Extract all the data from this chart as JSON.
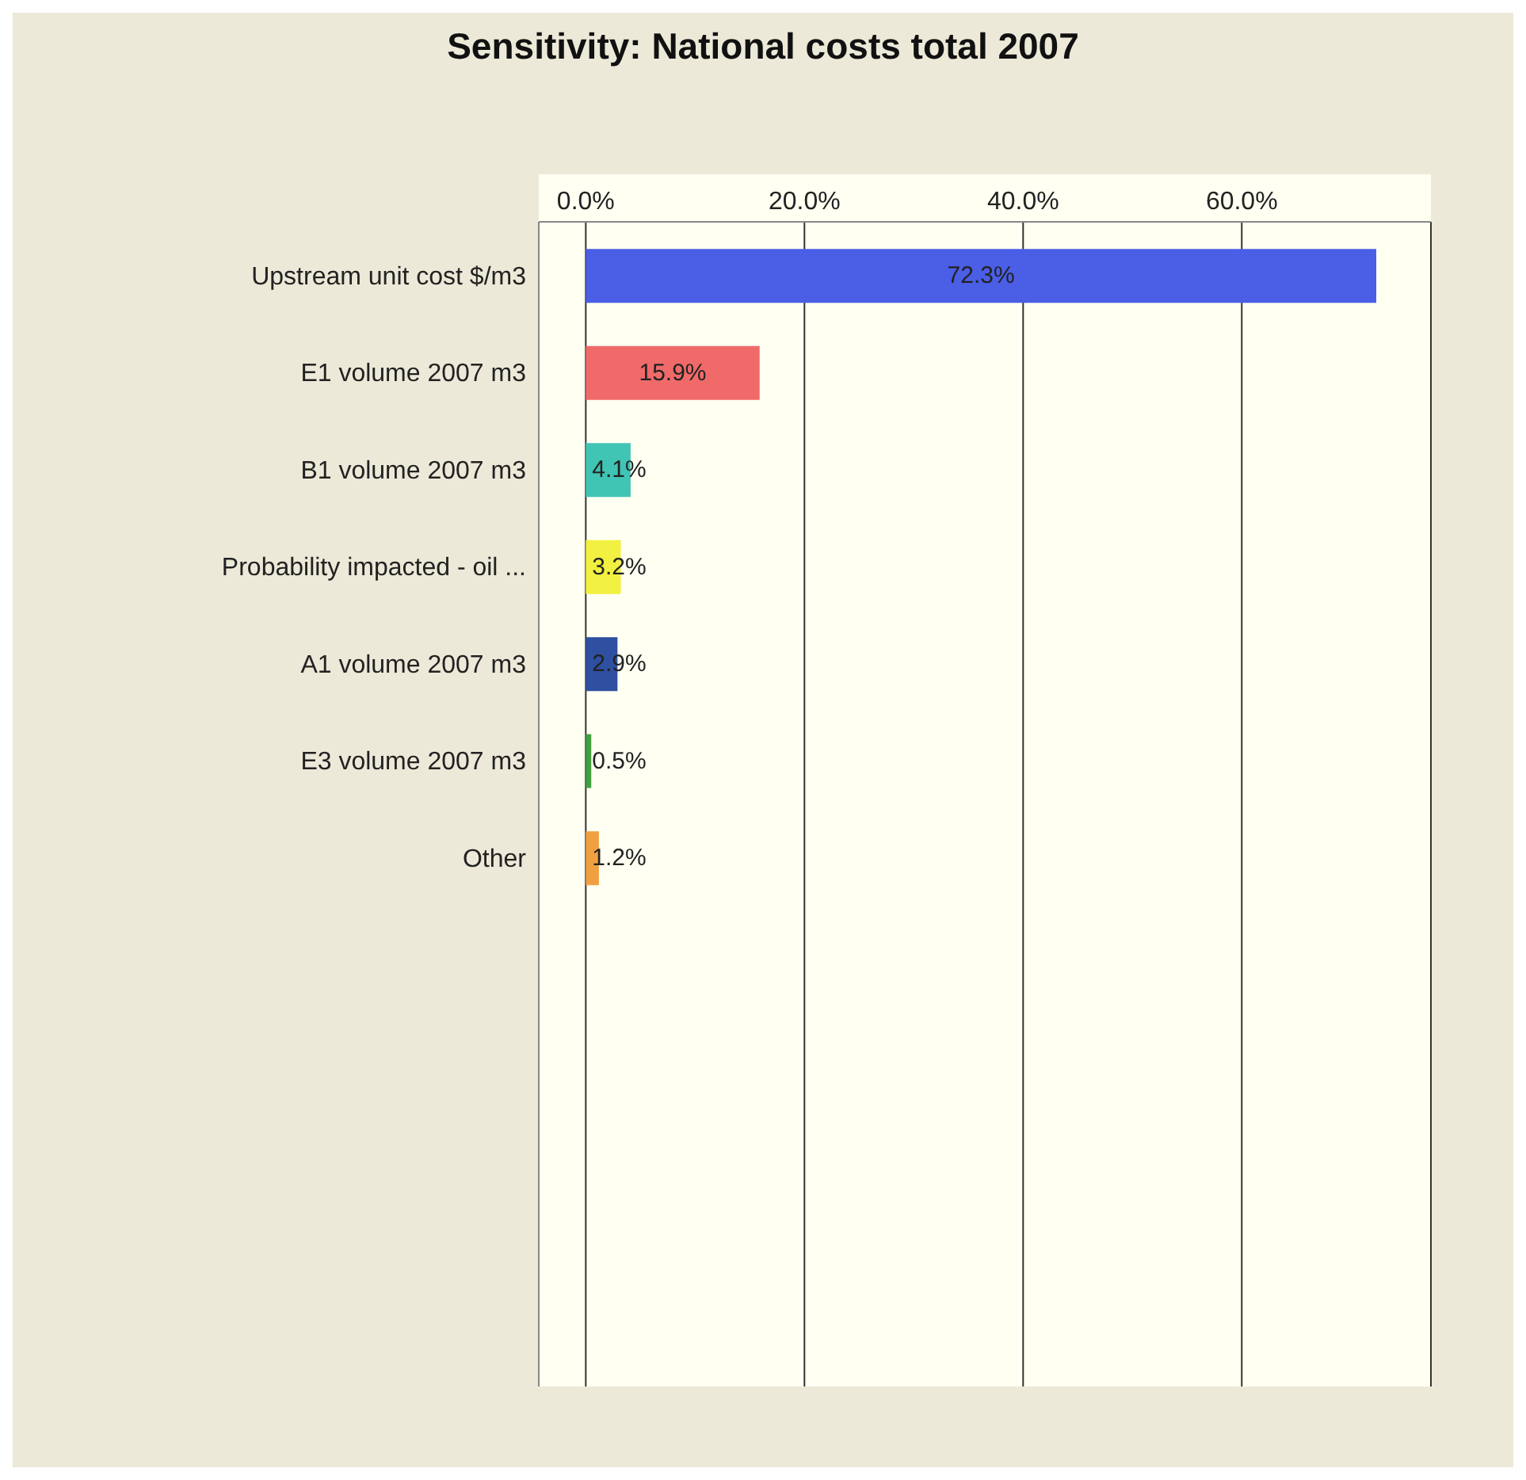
{
  "chart_data": {
    "type": "bar",
    "orientation": "horizontal",
    "title": "Sensitivity: National costs total 2007",
    "categories": [
      "Upstream unit cost $/m3",
      "E1 volume 2007 m3",
      "B1 volume 2007 m3",
      "Probability impacted - oil ...",
      "A1 volume 2007 m3",
      "E3 volume 2007 m3",
      "Other"
    ],
    "values": [
      72.3,
      15.9,
      4.1,
      3.2,
      2.9,
      0.5,
      1.2
    ],
    "colors": [
      "#4a5ee6",
      "#f06a6a",
      "#40c4b4",
      "#f2f040",
      "#2f4fa0",
      "#40a040",
      "#f0a040"
    ],
    "value_labels": [
      "72.3%",
      "15.9%",
      "4.1%",
      "3.2%",
      "2.9%",
      "0.5%",
      "1.2%"
    ],
    "xlim": [
      -4.3,
      77.3
    ],
    "xticks": [
      {
        "value": 0,
        "label": "0.0%"
      },
      {
        "value": 20,
        "label": "20.0%"
      },
      {
        "value": 40,
        "label": "40.0%"
      },
      {
        "value": 60,
        "label": "60.0%"
      }
    ],
    "grid": "x"
  }
}
